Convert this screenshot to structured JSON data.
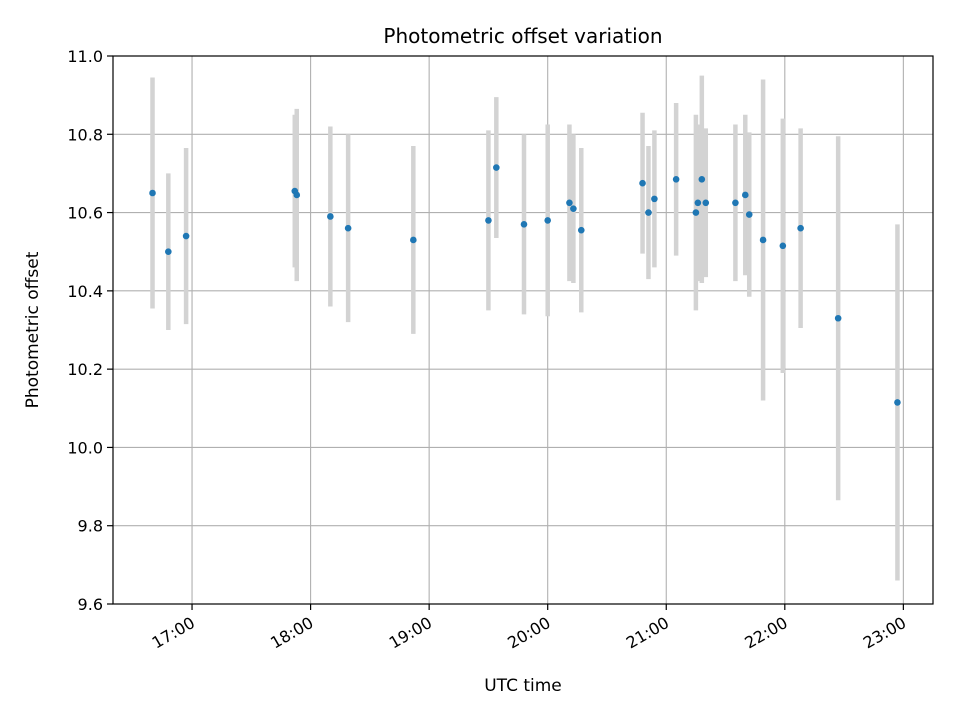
{
  "chart_data": {
    "type": "scatter",
    "title": "Photometric offset variation",
    "xlabel": "UTC time",
    "ylabel": "Photometric offset",
    "xlim": [
      "16:20",
      "23:15"
    ],
    "ylim": [
      9.6,
      11.0
    ],
    "x_ticks": [
      "17:00",
      "18:00",
      "19:00",
      "20:00",
      "21:00",
      "22:00",
      "23:00"
    ],
    "y_ticks": [
      "9.6",
      "9.8",
      "10.0",
      "10.2",
      "10.4",
      "10.6",
      "10.8",
      "11.0"
    ],
    "grid": true,
    "legend": "none",
    "marker_color": "#1f77b4",
    "errorbar_color": "#d3d3d3",
    "series": [
      {
        "points": [
          {
            "t": "16:40",
            "y": 10.65,
            "err": 0.295
          },
          {
            "t": "16:48",
            "y": 10.5,
            "err": 0.2
          },
          {
            "t": "16:57",
            "y": 10.54,
            "err": 0.225
          },
          {
            "t": "17:52",
            "y": 10.655,
            "err": 0.195
          },
          {
            "t": "17:53",
            "y": 10.645,
            "err": 0.22
          },
          {
            "t": "18:10",
            "y": 10.59,
            "err": 0.23
          },
          {
            "t": "18:19",
            "y": 10.56,
            "err": 0.24
          },
          {
            "t": "18:52",
            "y": 10.53,
            "err": 0.24
          },
          {
            "t": "19:30",
            "y": 10.58,
            "err": 0.23
          },
          {
            "t": "19:34",
            "y": 10.715,
            "err": 0.18
          },
          {
            "t": "19:48",
            "y": 10.57,
            "err": 0.23
          },
          {
            "t": "20:00",
            "y": 10.58,
            "err": 0.245
          },
          {
            "t": "20:11",
            "y": 10.625,
            "err": 0.2
          },
          {
            "t": "20:13",
            "y": 10.61,
            "err": 0.19
          },
          {
            "t": "20:17",
            "y": 10.555,
            "err": 0.21
          },
          {
            "t": "20:48",
            "y": 10.675,
            "err": 0.18
          },
          {
            "t": "20:51",
            "y": 10.6,
            "err": 0.17
          },
          {
            "t": "20:54",
            "y": 10.635,
            "err": 0.175
          },
          {
            "t": "21:05",
            "y": 10.685,
            "err": 0.195
          },
          {
            "t": "21:15",
            "y": 10.6,
            "err": 0.25
          },
          {
            "t": "21:16",
            "y": 10.625,
            "err": 0.2
          },
          {
            "t": "21:18",
            "y": 10.685,
            "err": 0.265
          },
          {
            "t": "21:20",
            "y": 10.625,
            "err": 0.19
          },
          {
            "t": "21:35",
            "y": 10.625,
            "err": 0.2
          },
          {
            "t": "21:40",
            "y": 10.645,
            "err": 0.205
          },
          {
            "t": "21:42",
            "y": 10.595,
            "err": 0.21
          },
          {
            "t": "21:49",
            "y": 10.53,
            "err": 0.41
          },
          {
            "t": "21:59",
            "y": 10.515,
            "err": 0.325
          },
          {
            "t": "22:08",
            "y": 10.56,
            "err": 0.255
          },
          {
            "t": "22:27",
            "y": 10.33,
            "err": 0.465
          },
          {
            "t": "22:57",
            "y": 10.115,
            "err": 0.455
          }
        ]
      }
    ]
  }
}
